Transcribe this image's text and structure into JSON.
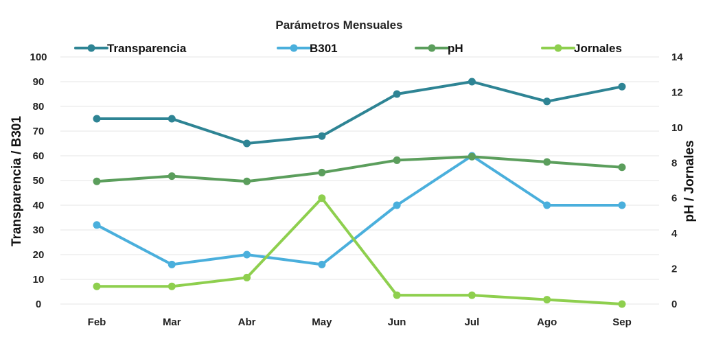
{
  "chart_data": {
    "type": "line",
    "title": "Parámetros Mensuales",
    "categories": [
      "Feb",
      "Mar",
      "Abr",
      "May",
      "Jun",
      "Jul",
      "Ago",
      "Sep"
    ],
    "left_axis": {
      "label": "Transparencia / B301",
      "ylim": [
        0,
        100
      ],
      "ticks": [
        "0",
        "10",
        "20",
        "30",
        "40",
        "50",
        "60",
        "70",
        "80",
        "90",
        "100"
      ]
    },
    "right_axis": {
      "label": "pH / Jornales",
      "ylim": [
        0,
        14
      ],
      "ticks": [
        "0",
        "2",
        "4",
        "6",
        "8",
        "10",
        "12",
        "14"
      ]
    },
    "grid": true,
    "legend_position": "top",
    "series": [
      {
        "name": "Transparencia",
        "axis": "left",
        "color": "#2e8494",
        "values": [
          75,
          75,
          65,
          68,
          85,
          90,
          82,
          88
        ]
      },
      {
        "name": "B301",
        "axis": "left",
        "color": "#4aafdc",
        "values": [
          32,
          16,
          20,
          16,
          40,
          60,
          40,
          40
        ]
      },
      {
        "name": "pH",
        "axis": "right",
        "color": "#5b9e5c",
        "values": [
          6.95,
          7.25,
          6.95,
          7.45,
          8.15,
          8.35,
          8.05,
          7.75
        ]
      },
      {
        "name": "Jornales",
        "axis": "right",
        "color": "#8ecf4e",
        "values": [
          1.0,
          1.0,
          1.5,
          6.0,
          0.5,
          0.5,
          0.25,
          0.0
        ]
      }
    ]
  }
}
